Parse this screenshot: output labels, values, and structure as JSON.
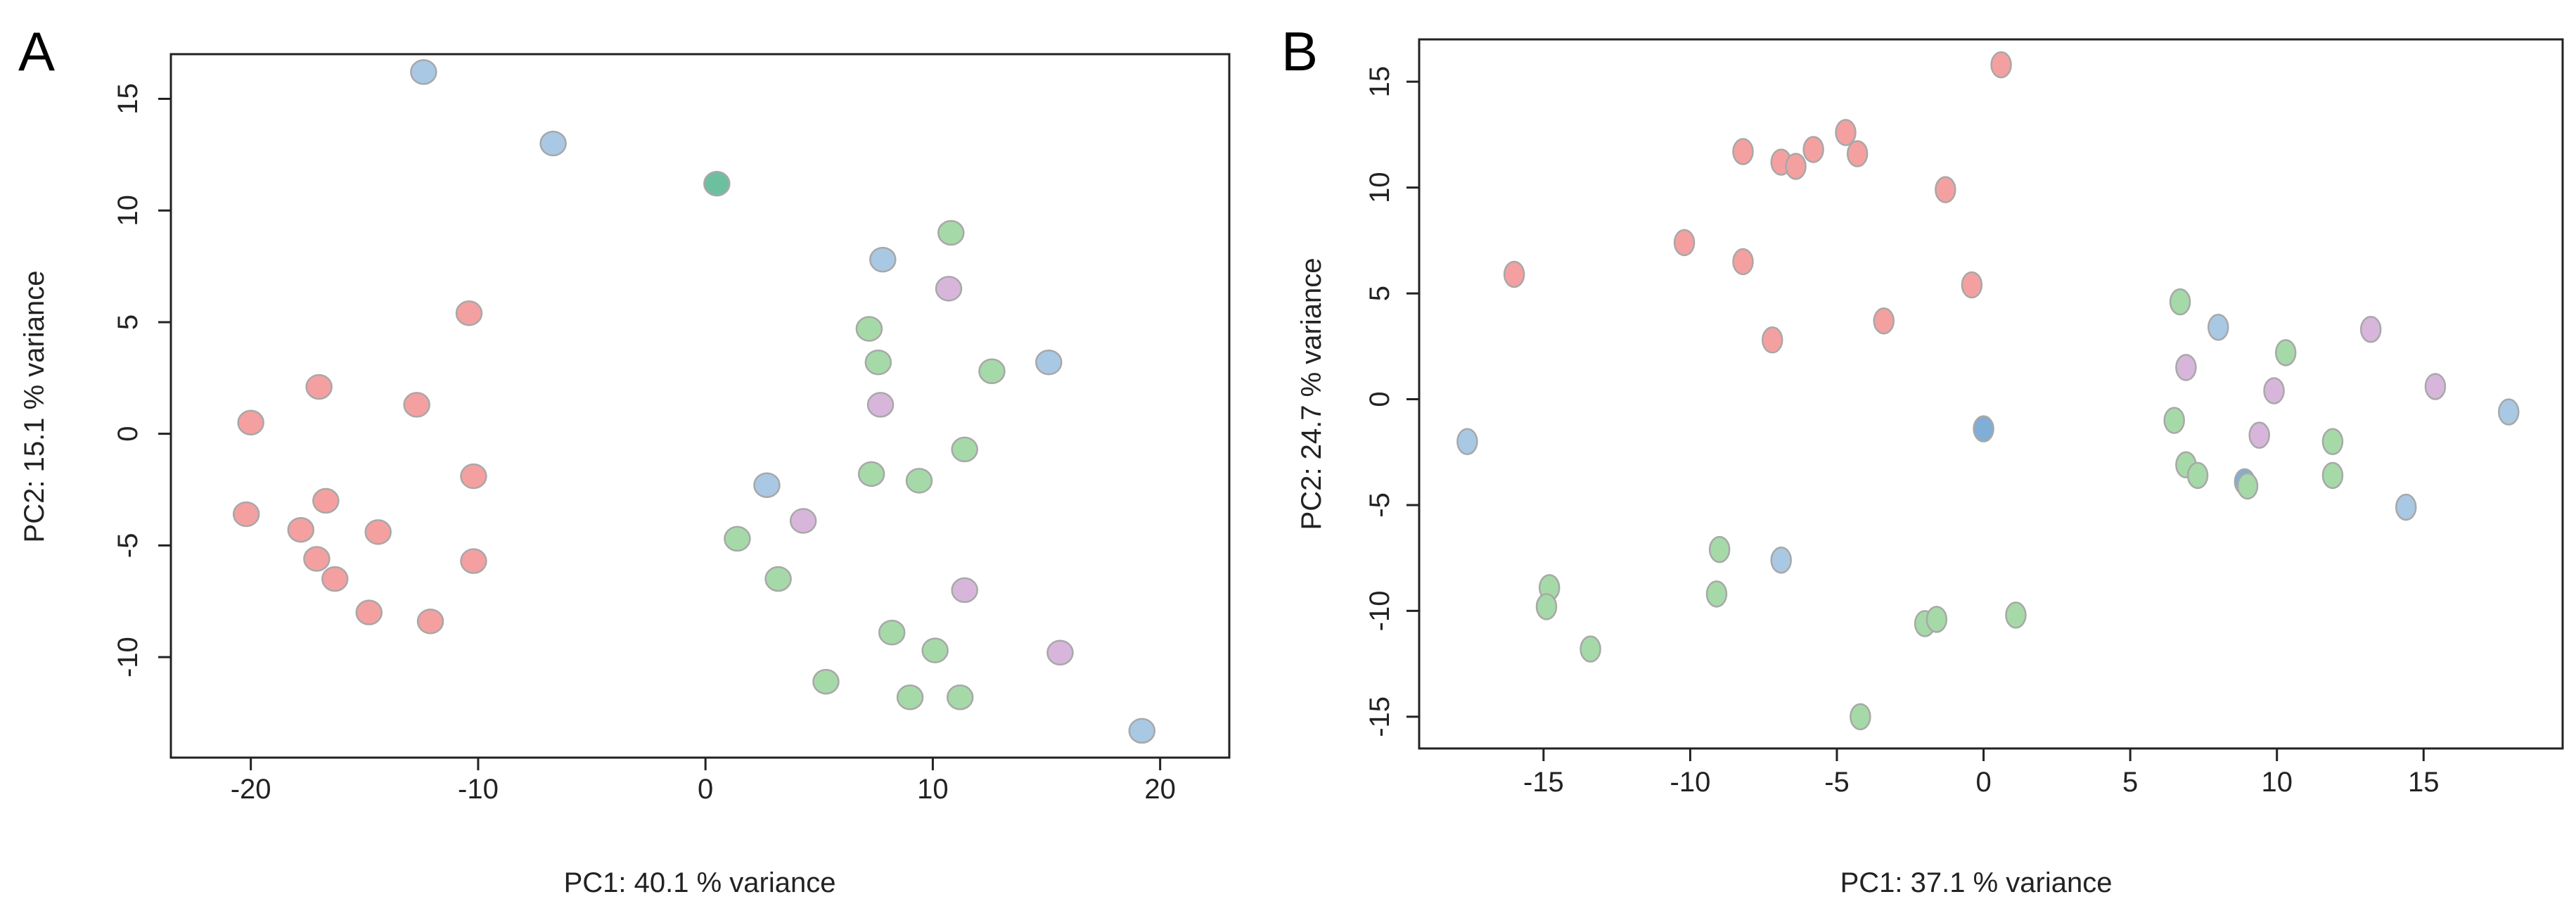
{
  "colors": {
    "red": "#F4A0A0",
    "green": "#A6D9A8",
    "blue": "#A9C8E4",
    "purple": "#D8B6DC",
    "teal": "#6CC0A0",
    "blue_dark": "#7FAED6"
  },
  "chart_data": [
    {
      "type": "scatter",
      "panel_label": "A",
      "xlabel": "PC1: 40.1 % variance",
      "ylabel": "PC2: 15.1 % variance",
      "xlim": [
        -22,
        21
      ],
      "ylim": [
        -14.5,
        17
      ],
      "xticks": [
        -20,
        -10,
        0,
        10,
        20
      ],
      "xtick_labels": [
        "-20",
        "-10",
        "0",
        "10",
        "20"
      ],
      "yticks": [
        -10,
        -5,
        0,
        5,
        10,
        15
      ],
      "ytick_labels": [
        "-10",
        "-5",
        "0",
        "5",
        "10",
        "15"
      ],
      "series": [
        {
          "name": "red",
          "color_key": "red",
          "points": [
            [
              -20.0,
              0.5
            ],
            [
              -20.2,
              -3.6
            ],
            [
              -17.8,
              -4.3
            ],
            [
              -17.1,
              -5.6
            ],
            [
              -16.7,
              -3.0
            ],
            [
              -17.0,
              2.1
            ],
            [
              -16.3,
              -6.5
            ],
            [
              -14.4,
              -4.4
            ],
            [
              -14.8,
              -8.0
            ],
            [
              -12.7,
              1.3
            ],
            [
              -12.1,
              -8.4
            ],
            [
              -10.4,
              5.4
            ],
            [
              -10.2,
              -1.9
            ],
            [
              -10.2,
              -5.7
            ]
          ]
        },
        {
          "name": "blue",
          "color_key": "blue",
          "points": [
            [
              -12.4,
              16.2
            ],
            [
              -6.7,
              13.0
            ],
            [
              7.8,
              7.8
            ],
            [
              2.7,
              -2.3
            ],
            [
              15.1,
              3.2
            ],
            [
              19.2,
              -13.3
            ]
          ]
        },
        {
          "name": "teal",
          "color_key": "teal",
          "points": [
            [
              0.5,
              11.2
            ]
          ]
        },
        {
          "name": "green",
          "color_key": "green",
          "points": [
            [
              10.8,
              9.0
            ],
            [
              7.2,
              4.7
            ],
            [
              7.6,
              3.2
            ],
            [
              12.6,
              2.8
            ],
            [
              11.4,
              -0.7
            ],
            [
              7.3,
              -1.8
            ],
            [
              9.4,
              -2.1
            ],
            [
              1.4,
              -4.7
            ],
            [
              3.2,
              -6.5
            ],
            [
              8.2,
              -8.9
            ],
            [
              10.1,
              -9.7
            ],
            [
              5.3,
              -11.1
            ],
            [
              9.0,
              -11.8
            ],
            [
              11.2,
              -11.8
            ]
          ]
        },
        {
          "name": "purple",
          "color_key": "purple",
          "points": [
            [
              10.7,
              6.5
            ],
            [
              7.7,
              1.3
            ],
            [
              4.3,
              -3.9
            ],
            [
              11.4,
              -7.0
            ],
            [
              15.6,
              -9.8
            ]
          ]
        }
      ]
    },
    {
      "type": "scatter",
      "panel_label": "B",
      "xlabel": "PC1: 37.1 % variance",
      "ylabel": "PC2: 24.7 % variance",
      "xlim": [
        -19,
        19.5
      ],
      "ylim": [
        -16.5,
        17
      ],
      "xticks": [
        -15,
        -10,
        -5,
        0,
        5,
        10,
        15
      ],
      "xtick_labels": [
        "-15",
        "-10",
        "-5",
        "0",
        "5",
        "10",
        "15"
      ],
      "yticks": [
        -15,
        -10,
        -5,
        0,
        5,
        10,
        15
      ],
      "ytick_labels": [
        "-15",
        "-10",
        "-5",
        "0",
        "5",
        "10",
        "15"
      ],
      "series": [
        {
          "name": "red",
          "color_key": "red",
          "points": [
            [
              0.6,
              15.8
            ],
            [
              -4.7,
              12.6
            ],
            [
              -8.2,
              11.7
            ],
            [
              -6.9,
              11.2
            ],
            [
              -6.4,
              11.0
            ],
            [
              -5.8,
              11.8
            ],
            [
              -4.3,
              11.6
            ],
            [
              -1.3,
              9.9
            ],
            [
              -10.2,
              7.4
            ],
            [
              -8.2,
              6.5
            ],
            [
              -16.0,
              5.9
            ],
            [
              -0.4,
              5.4
            ],
            [
              -7.2,
              2.8
            ],
            [
              -3.4,
              3.7
            ]
          ]
        },
        {
          "name": "blue",
          "color_key": "blue",
          "points": [
            [
              -17.6,
              -2.0
            ],
            [
              8.0,
              3.4
            ],
            [
              14.4,
              -5.1
            ],
            [
              17.9,
              -0.6
            ],
            [
              -6.9,
              -7.6
            ]
          ]
        },
        {
          "name": "blue_dark",
          "color_key": "blue_dark",
          "points": [
            [
              0.0,
              -1.4
            ],
            [
              8.9,
              -3.9
            ]
          ]
        },
        {
          "name": "green",
          "color_key": "green",
          "points": [
            [
              6.7,
              4.6
            ],
            [
              10.3,
              2.2
            ],
            [
              6.5,
              -1.0
            ],
            [
              6.9,
              -3.1
            ],
            [
              7.3,
              -3.6
            ],
            [
              9.0,
              -4.1
            ],
            [
              11.9,
              -2.0
            ],
            [
              11.9,
              -3.6
            ],
            [
              -9.0,
              -7.1
            ],
            [
              -9.1,
              -9.2
            ],
            [
              -14.8,
              -8.9
            ],
            [
              -14.9,
              -9.8
            ],
            [
              -13.4,
              -11.8
            ],
            [
              -2.0,
              -10.6
            ],
            [
              -1.6,
              -10.4
            ],
            [
              1.1,
              -10.2
            ],
            [
              -4.2,
              -15.0
            ]
          ]
        },
        {
          "name": "purple",
          "color_key": "purple",
          "points": [
            [
              6.9,
              1.5
            ],
            [
              9.9,
              0.4
            ],
            [
              9.4,
              -1.7
            ],
            [
              13.2,
              3.3
            ],
            [
              15.4,
              0.6
            ]
          ]
        }
      ]
    }
  ]
}
